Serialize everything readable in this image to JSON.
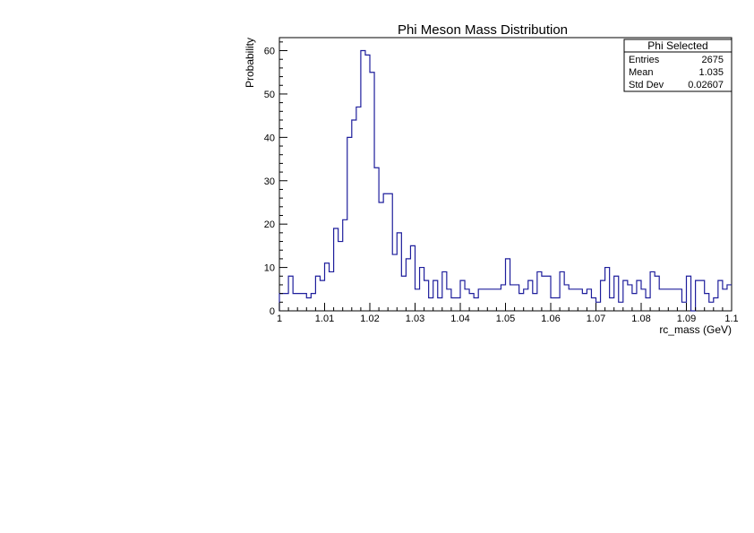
{
  "chart_data": {
    "type": "bar",
    "title": "Phi Meson Mass Distribution",
    "xlabel": "rc_mass (GeV)",
    "ylabel": "Probability",
    "xlim": [
      1.0,
      1.1
    ],
    "ylim": [
      0,
      63
    ],
    "bin_width": 0.001,
    "x_ticks": [
      1.0,
      1.01,
      1.02,
      1.03,
      1.04,
      1.05,
      1.06,
      1.07,
      1.08,
      1.09,
      1.1
    ],
    "x_tick_labels": [
      "1",
      "1.01",
      "1.02",
      "1.03",
      "1.04",
      "1.05",
      "1.06",
      "1.07",
      "1.08",
      "1.09",
      "1.1"
    ],
    "y_ticks": [
      0,
      10,
      20,
      30,
      40,
      50,
      60
    ],
    "y_tick_labels": [
      "0",
      "10",
      "20",
      "30",
      "40",
      "50",
      "60"
    ],
    "series": [
      {
        "color": "#1e1e9c",
        "values": [
          4,
          4,
          8,
          4,
          4,
          4,
          3,
          4,
          8,
          7,
          11,
          9,
          19,
          16,
          21,
          40,
          44,
          47,
          60,
          59,
          55,
          33,
          25,
          27,
          27,
          13,
          18,
          8,
          12,
          15,
          5,
          10,
          7,
          3,
          7,
          3,
          9,
          5,
          3,
          3,
          7,
          5,
          4,
          3,
          5,
          5,
          5,
          5,
          5,
          6,
          12,
          6,
          6,
          4,
          5,
          7,
          4,
          9,
          8,
          8,
          3,
          3,
          9,
          6,
          5,
          5,
          5,
          4,
          5,
          3,
          2,
          7,
          10,
          3,
          8,
          2,
          7,
          6,
          4,
          7,
          5,
          3,
          9,
          8,
          5,
          5,
          5,
          5,
          5,
          2,
          8,
          0,
          7,
          7,
          4,
          2,
          3,
          7,
          5,
          6,
          4
        ]
      }
    ],
    "legend": {
      "position": "top-right",
      "title": "Phi Selected",
      "rows": [
        {
          "label": "Entries",
          "value": "2675"
        },
        {
          "label": "Mean",
          "value": "1.035"
        },
        {
          "label": "Std Dev",
          "value": "0.02607"
        }
      ]
    }
  }
}
